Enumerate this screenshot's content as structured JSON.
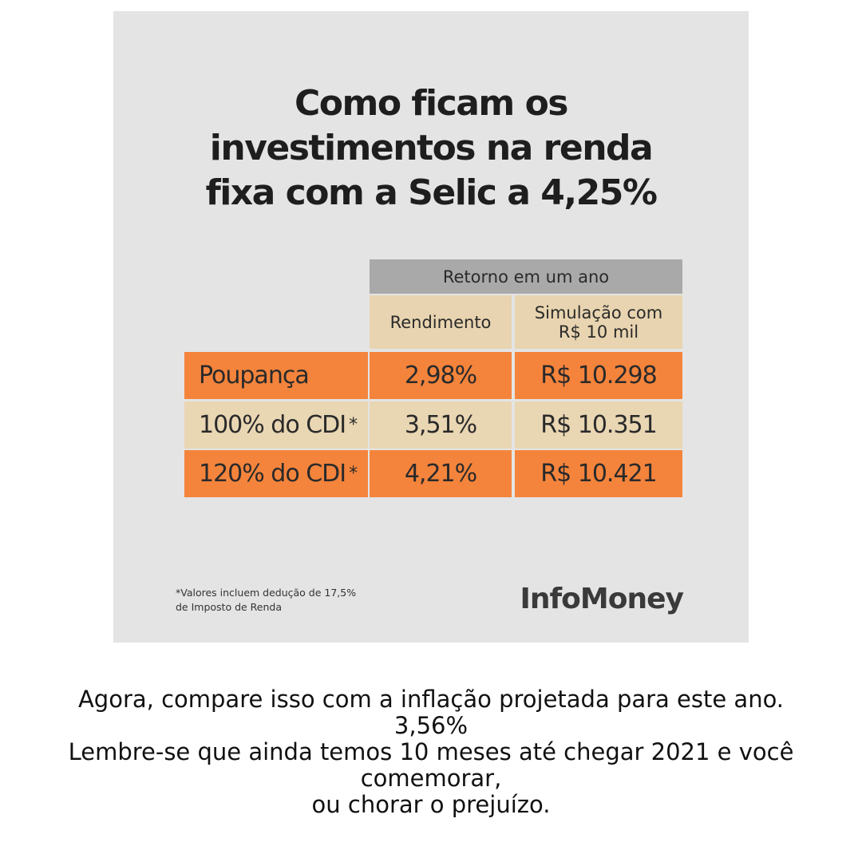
{
  "card": {
    "title_lines": [
      "Como ficam os",
      "investimentos na renda",
      "fixa com a Selic a 4,25%"
    ],
    "table": {
      "group_header": "Retorno em um ano",
      "columns": [
        "Rendimento",
        "Simulação com R$ 10 mil"
      ],
      "rows": [
        {
          "label": "Poupança",
          "cells": [
            "2,98%",
            "R$ 10.298"
          ]
        },
        {
          "label": "100% do CDI",
          "note": "*",
          "cells": [
            "3,51%",
            "R$ 10.351"
          ]
        },
        {
          "label": "120% do CDI",
          "note": "*",
          "cells": [
            "4,21%",
            "R$ 10.421"
          ]
        }
      ]
    },
    "footnote_lines": [
      "*Valores incluem dedução de 17,5%",
      "de Imposto de Renda"
    ],
    "brand": "InfoMoney"
  },
  "caption_lines": [
    "Agora, compare isso com a inflação projetada para este ano.",
    "3,56%",
    "Lembre-se que ainda temos 10 meses até chegar 2021 e você",
    "comemorar,",
    "ou chorar o prejuízo."
  ]
}
